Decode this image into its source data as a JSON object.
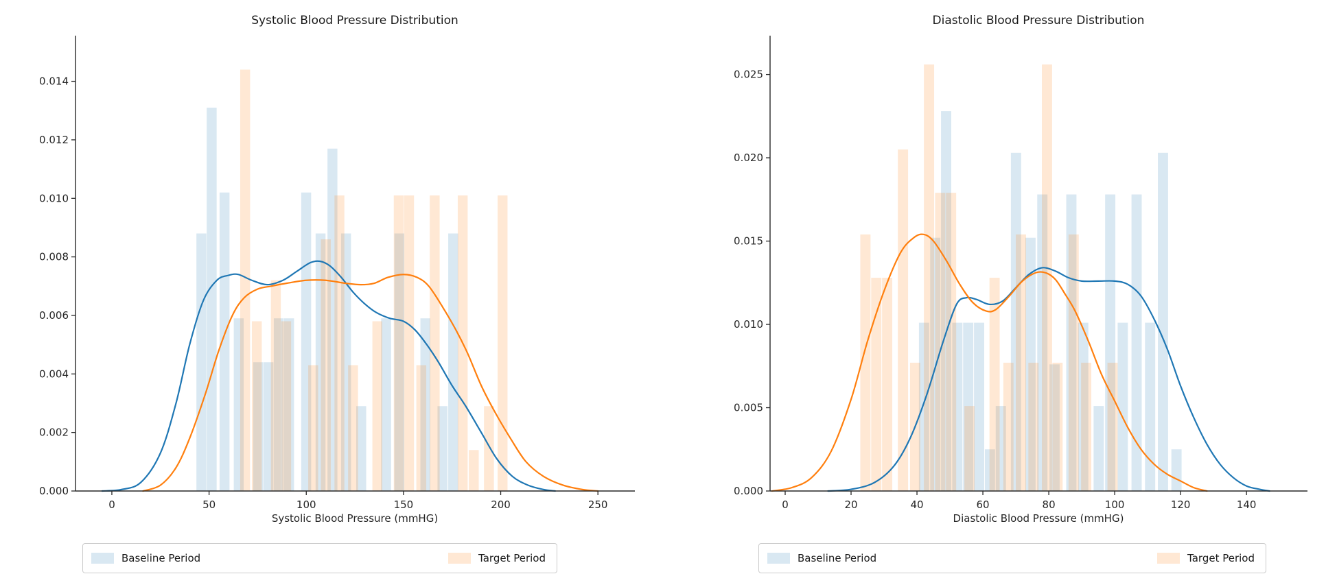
{
  "figure": {
    "background": "#ffffff"
  },
  "colors": {
    "baseline_line": "#1f77b4",
    "target_line": "#ff7f0e",
    "baseline_fill": "rgba(31,119,180,0.17)",
    "target_fill": "rgba(255,127,14,0.18)",
    "spine": "#262626",
    "tick_label": "#262626",
    "legend_border": "#cbcbcb"
  },
  "legend": {
    "baseline_label": "Baseline Period",
    "target_label": "Target Period"
  },
  "chart_data": [
    {
      "type": "histogram+kde",
      "title": "Systolic Blood Pressure Distribution",
      "xlabel": "Systolic Blood Pressure (mmHG)",
      "ylabel": "",
      "xlim": [
        -18.7,
        269
      ],
      "ylim": [
        0,
        0.01556
      ],
      "xticks": [
        0,
        50,
        100,
        150,
        200,
        250
      ],
      "ytick_values": [
        0,
        0.002,
        0.004,
        0.006,
        0.008,
        0.01,
        0.012,
        0.014
      ],
      "ytick_labels": [
        "0.000",
        "0.002",
        "0.004",
        "0.006",
        "0.008",
        "0.010",
        "0.012",
        "0.014"
      ],
      "grid": false,
      "legend_position": "lower outside",
      "bar_width": 5.1,
      "series": [
        {
          "name": "Baseline Period",
          "role": "baseline",
          "bars": [
            [
              43.5,
              0.0088
            ],
            [
              48.8,
              0.0131
            ],
            [
              55.4,
              0.0102
            ],
            [
              62.7,
              0.0059
            ],
            [
              72.7,
              0.0044
            ],
            [
              78.0,
              0.0044
            ],
            [
              83.3,
              0.0059
            ],
            [
              88.6,
              0.0059
            ],
            [
              97.4,
              0.0102
            ],
            [
              104.8,
              0.0088
            ],
            [
              110.9,
              0.0117
            ],
            [
              117.9,
              0.0088
            ],
            [
              125.7,
              0.0029
            ],
            [
              138.5,
              0.0059
            ],
            [
              145.3,
              0.0088
            ],
            [
              158.7,
              0.0059
            ],
            [
              167.5,
              0.0029
            ],
            [
              173.0,
              0.0088
            ]
          ],
          "kde": [
            [
              -5,
              0
            ],
            [
              5,
              5e-05
            ],
            [
              15,
              0.0003
            ],
            [
              25,
              0.0013
            ],
            [
              33,
              0.003
            ],
            [
              40,
              0.005
            ],
            [
              47,
              0.0065
            ],
            [
              54,
              0.0072
            ],
            [
              60,
              0.00737
            ],
            [
              65,
              0.0074
            ],
            [
              72,
              0.0072
            ],
            [
              80,
              0.00705
            ],
            [
              88,
              0.0072
            ],
            [
              95,
              0.0075
            ],
            [
              102,
              0.0078
            ],
            [
              107,
              0.00785
            ],
            [
              112,
              0.0077
            ],
            [
              118,
              0.0073
            ],
            [
              124,
              0.0068
            ],
            [
              130,
              0.0064
            ],
            [
              136,
              0.0061
            ],
            [
              143,
              0.0059
            ],
            [
              150,
              0.0058
            ],
            [
              156,
              0.0055
            ],
            [
              162,
              0.005
            ],
            [
              168,
              0.0044
            ],
            [
              175,
              0.0036
            ],
            [
              182,
              0.0029
            ],
            [
              190,
              0.002
            ],
            [
              198,
              0.0011
            ],
            [
              206,
              0.0005
            ],
            [
              214,
              0.0002
            ],
            [
              222,
              5e-05
            ],
            [
              228,
              0
            ]
          ]
        },
        {
          "name": "Target Period",
          "role": "target",
          "bars": [
            [
              66.0,
              0.0144
            ],
            [
              72.0,
              0.0058
            ],
            [
              81.8,
              0.0072
            ],
            [
              87.1,
              0.0058
            ],
            [
              101.0,
              0.0043
            ],
            [
              107.5,
              0.0086
            ],
            [
              114.5,
              0.0101
            ],
            [
              121.5,
              0.0043
            ],
            [
              134.0,
              0.0058
            ],
            [
              145.0,
              0.0101
            ],
            [
              150.3,
              0.0101
            ],
            [
              156.6,
              0.0043
            ],
            [
              163.5,
              0.0101
            ],
            [
              177.9,
              0.0101
            ],
            [
              183.6,
              0.0014
            ],
            [
              191.4,
              0.0029
            ],
            [
              198.4,
              0.0101
            ]
          ],
          "kde": [
            [
              16,
              0
            ],
            [
              25,
              0.0002
            ],
            [
              33,
              0.0008
            ],
            [
              40,
              0.0018
            ],
            [
              48,
              0.0033
            ],
            [
              55,
              0.0048
            ],
            [
              62,
              0.006
            ],
            [
              68,
              0.0066
            ],
            [
              75,
              0.0069
            ],
            [
              82,
              0.007
            ],
            [
              90,
              0.0071
            ],
            [
              100,
              0.0072
            ],
            [
              110,
              0.0072
            ],
            [
              120,
              0.0071
            ],
            [
              128,
              0.00705
            ],
            [
              135,
              0.0071
            ],
            [
              142,
              0.0073
            ],
            [
              150,
              0.0074
            ],
            [
              157,
              0.0073
            ],
            [
              163,
              0.007
            ],
            [
              170,
              0.0063
            ],
            [
              177,
              0.0055
            ],
            [
              183,
              0.0047
            ],
            [
              190,
              0.0036
            ],
            [
              197,
              0.0027
            ],
            [
              205,
              0.0018
            ],
            [
              213,
              0.001
            ],
            [
              222,
              0.0005
            ],
            [
              232,
              0.0002
            ],
            [
              242,
              5e-05
            ],
            [
              250,
              0
            ]
          ]
        }
      ]
    },
    {
      "type": "histogram+kde",
      "title": "Diastolic Blood Pressure Distribution",
      "xlabel": "Diastolic Blood Pressure (mmHG)",
      "ylabel": "",
      "xlim": [
        -4.58,
        158.5
      ],
      "ylim": [
        0,
        0.02733
      ],
      "xticks": [
        0,
        20,
        40,
        60,
        80,
        100,
        120,
        140
      ],
      "ytick_values": [
        0,
        0.005,
        0.01,
        0.015,
        0.02,
        0.025
      ],
      "ytick_labels": [
        "0.000",
        "0.005",
        "0.010",
        "0.015",
        "0.020",
        "0.025"
      ],
      "grid": false,
      "legend_position": "lower outside",
      "bar_width": 3.1,
      "series": [
        {
          "name": "Baseline Period",
          "role": "baseline",
          "bars": [
            [
              40.6,
              0.0101
            ],
            [
              44.0,
              0.0152
            ],
            [
              47.3,
              0.0228
            ],
            [
              50.7,
              0.0101
            ],
            [
              54.0,
              0.0101
            ],
            [
              57.3,
              0.0101
            ],
            [
              60.6,
              0.0025
            ],
            [
              63.9,
              0.0051
            ],
            [
              68.5,
              0.0203
            ],
            [
              72.9,
              0.0152
            ],
            [
              76.5,
              0.0178
            ],
            [
              80.2,
              0.0076
            ],
            [
              85.3,
              0.0178
            ],
            [
              88.9,
              0.0101
            ],
            [
              93.6,
              0.0051
            ],
            [
              97.1,
              0.0178
            ],
            [
              100.9,
              0.0101
            ],
            [
              105.1,
              0.0178
            ],
            [
              109.2,
              0.0101
            ],
            [
              113.1,
              0.0203
            ],
            [
              117.2,
              0.0025
            ]
          ],
          "kde": [
            [
              13,
              0
            ],
            [
              20,
              0.0001
            ],
            [
              27,
              0.0005
            ],
            [
              33,
              0.0015
            ],
            [
              38,
              0.0032
            ],
            [
              43,
              0.0058
            ],
            [
              48,
              0.009
            ],
            [
              52,
              0.0112
            ],
            [
              55,
              0.0116
            ],
            [
              58,
              0.0115
            ],
            [
              62,
              0.0112
            ],
            [
              66,
              0.0114
            ],
            [
              70,
              0.0122
            ],
            [
              74,
              0.013
            ],
            [
              78,
              0.0134
            ],
            [
              82,
              0.0132
            ],
            [
              86,
              0.0128
            ],
            [
              90,
              0.0126
            ],
            [
              95,
              0.0126
            ],
            [
              100,
              0.0126
            ],
            [
              104,
              0.0124
            ],
            [
              108,
              0.0117
            ],
            [
              112,
              0.0103
            ],
            [
              116,
              0.0085
            ],
            [
              120,
              0.0063
            ],
            [
              124,
              0.0044
            ],
            [
              128,
              0.0028
            ],
            [
              132,
              0.0016
            ],
            [
              136,
              0.0008
            ],
            [
              140,
              0.0003
            ],
            [
              144,
              0.0001
            ],
            [
              147,
              0
            ]
          ]
        },
        {
          "name": "Target Period",
          "role": "target",
          "bars": [
            [
              22.8,
              0.0154
            ],
            [
              26.1,
              0.0128
            ],
            [
              29.4,
              0.0128
            ],
            [
              34.2,
              0.0205
            ],
            [
              37.9,
              0.0077
            ],
            [
              42.1,
              0.0256
            ],
            [
              45.5,
              0.0179
            ],
            [
              48.8,
              0.0179
            ],
            [
              54.4,
              0.0051
            ],
            [
              62.0,
              0.0128
            ],
            [
              66.2,
              0.0077
            ],
            [
              70.0,
              0.0154
            ],
            [
              73.8,
              0.0077
            ],
            [
              77.9,
              0.0256
            ],
            [
              81.1,
              0.0077
            ],
            [
              86.0,
              0.0154
            ],
            [
              89.8,
              0.0077
            ],
            [
              97.8,
              0.0077
            ]
          ],
          "kde": [
            [
              -4,
              0
            ],
            [
              2,
              0.0002
            ],
            [
              8,
              0.0008
            ],
            [
              14,
              0.0024
            ],
            [
              20,
              0.0055
            ],
            [
              25,
              0.009
            ],
            [
              30,
              0.012
            ],
            [
              35,
              0.0143
            ],
            [
              39,
              0.0152
            ],
            [
              42,
              0.0154
            ],
            [
              45,
              0.015
            ],
            [
              49,
              0.0138
            ],
            [
              53,
              0.0124
            ],
            [
              57,
              0.0113
            ],
            [
              61,
              0.0108
            ],
            [
              64,
              0.0109
            ],
            [
              68,
              0.0117
            ],
            [
              72,
              0.0126
            ],
            [
              76,
              0.0131
            ],
            [
              79,
              0.0131
            ],
            [
              82,
              0.0127
            ],
            [
              85,
              0.0118
            ],
            [
              88,
              0.0108
            ],
            [
              92,
              0.009
            ],
            [
              96,
              0.007
            ],
            [
              100,
              0.0054
            ],
            [
              104,
              0.0038
            ],
            [
              108,
              0.0025
            ],
            [
              112,
              0.0016
            ],
            [
              116,
              0.001
            ],
            [
              120,
              0.0006
            ],
            [
              124,
              0.0002
            ],
            [
              128,
              0
            ]
          ]
        }
      ]
    }
  ]
}
